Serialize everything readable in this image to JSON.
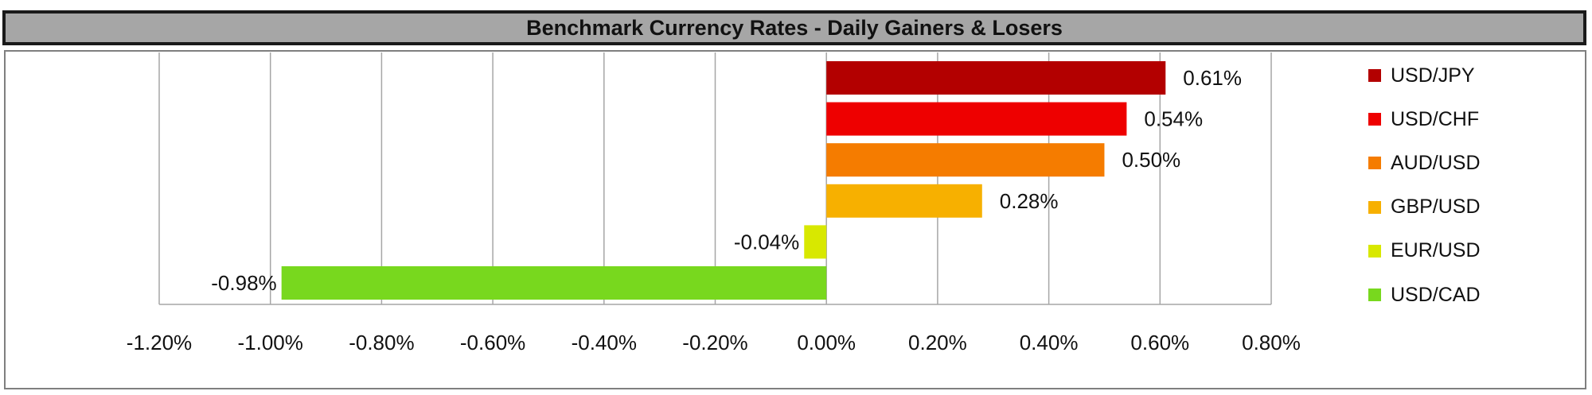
{
  "title": "Benchmark Currency Rates - Daily Gainers & Losers",
  "chart_data": {
    "type": "bar",
    "orientation": "horizontal",
    "title": "Benchmark Currency Rates - Daily Gainers & Losers",
    "xlabel": "",
    "ylabel": "",
    "xlim": [
      -1.2,
      0.8
    ],
    "x_ticks": [
      -1.2,
      -1.0,
      -0.8,
      -0.6,
      -0.4,
      -0.2,
      0.0,
      0.2,
      0.4,
      0.6,
      0.8
    ],
    "x_tick_labels": [
      "-1.20%",
      "-1.00%",
      "-0.80%",
      "-0.60%",
      "-0.40%",
      "-0.20%",
      "0.00%",
      "0.20%",
      "0.40%",
      "0.60%",
      "0.80%"
    ],
    "grid": "vertical",
    "legend_position": "right",
    "series": [
      {
        "name": "USD/JPY",
        "value": 0.61,
        "label": "0.61%",
        "color": "#B30000"
      },
      {
        "name": "USD/CHF",
        "value": 0.54,
        "label": "0.54%",
        "color": "#EE0000"
      },
      {
        "name": "AUD/USD",
        "value": 0.5,
        "label": "0.50%",
        "color": "#F57C00"
      },
      {
        "name": "GBP/USD",
        "value": 0.28,
        "label": "0.28%",
        "color": "#F7B000"
      },
      {
        "name": "EUR/USD",
        "value": -0.04,
        "label": "-0.04%",
        "color": "#D8E800"
      },
      {
        "name": "USD/CAD",
        "value": -0.98,
        "label": "-0.98%",
        "color": "#78D81E"
      }
    ]
  }
}
